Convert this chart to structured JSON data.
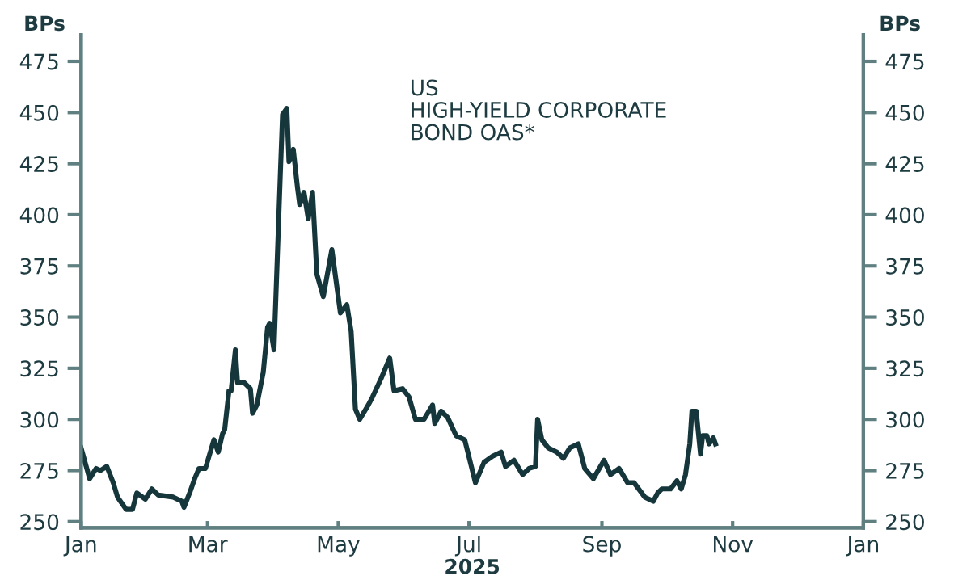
{
  "chart_data": {
    "type": "line",
    "title": "US\nHIGH-YIELD CORPORATE\nBOND OAS*",
    "xlabel": "2025",
    "ylabel": "BPs",
    "y2label": "BPs",
    "x": [
      "2025-01-01",
      "2025-01-05",
      "2025-01-08",
      "2025-01-10",
      "2025-01-13",
      "2025-01-16",
      "2025-01-18",
      "2025-01-22",
      "2025-01-25",
      "2025-01-27",
      "2025-01-31",
      "2025-02-03",
      "2025-02-06",
      "2025-02-13",
      "2025-02-17",
      "2025-02-18",
      "2025-02-21",
      "2025-02-23",
      "2025-02-25",
      "2025-02-28",
      "2025-03-04",
      "2025-03-06",
      "2025-03-08",
      "2025-03-09",
      "2025-03-11",
      "2025-03-12",
      "2025-03-14",
      "2025-03-15",
      "2025-03-18",
      "2025-03-21",
      "2025-03-22",
      "2025-03-24",
      "2025-03-27",
      "2025-03-29",
      "2025-03-30",
      "2025-04-01",
      "2025-04-04",
      "2025-04-05",
      "2025-04-07",
      "2025-04-08",
      "2025-04-10",
      "2025-04-12",
      "2025-04-13",
      "2025-04-15",
      "2025-04-17",
      "2025-04-19",
      "2025-04-21",
      "2025-04-24",
      "2025-04-28",
      "2025-05-02",
      "2025-05-05",
      "2025-05-07",
      "2025-05-09",
      "2025-05-11",
      "2025-05-15",
      "2025-05-17",
      "2025-05-21",
      "2025-05-25",
      "2025-05-27",
      "2025-05-31",
      "2025-06-03",
      "2025-06-06",
      "2025-06-10",
      "2025-06-14",
      "2025-06-15",
      "2025-06-18",
      "2025-06-21",
      "2025-06-25",
      "2025-06-29",
      "2025-07-04",
      "2025-07-08",
      "2025-07-12",
      "2025-07-16",
      "2025-07-18",
      "2025-07-22",
      "2025-07-26",
      "2025-07-29",
      "2025-08-01",
      "2025-08-02",
      "2025-08-04",
      "2025-08-07",
      "2025-08-11",
      "2025-08-14",
      "2025-08-17",
      "2025-08-21",
      "2025-08-24",
      "2025-08-28",
      "2025-09-02",
      "2025-09-05",
      "2025-09-09",
      "2025-09-13",
      "2025-09-16",
      "2025-09-21",
      "2025-09-25",
      "2025-09-27",
      "2025-09-29",
      "2025-10-03",
      "2025-10-06",
      "2025-10-08",
      "2025-10-10",
      "2025-10-12",
      "2025-10-13",
      "2025-10-15",
      "2025-10-17",
      "2025-10-18",
      "2025-10-20",
      "2025-10-21",
      "2025-10-23",
      "2025-10-24"
    ],
    "series": [
      {
        "color": "#15363b",
        "values": [
          286,
          271,
          276,
          275,
          277,
          269,
          262,
          256,
          256,
          264,
          261,
          266,
          263,
          262,
          260,
          257,
          265,
          271,
          276,
          276,
          290,
          284,
          293,
          295,
          314,
          314,
          334,
          318,
          318,
          315,
          303,
          307,
          323,
          345,
          347,
          334,
          421,
          449,
          452,
          426,
          432,
          413,
          405,
          411,
          398,
          411,
          371,
          360,
          383,
          352,
          356,
          343,
          305,
          300,
          307,
          311,
          320,
          330,
          314,
          315,
          311,
          300,
          300,
          307,
          298,
          304,
          301,
          292,
          290,
          269,
          279,
          282,
          284,
          277,
          280,
          273,
          276,
          277,
          300,
          290,
          286,
          284,
          281,
          286,
          288,
          276,
          271,
          280,
          273,
          276,
          269,
          269,
          262,
          260,
          264,
          266,
          266,
          270,
          266,
          273,
          288,
          304,
          304,
          283,
          292,
          292,
          288,
          291,
          288
        ]
      }
    ],
    "xlim": [
      "2025-01-01",
      "2026-01-01"
    ],
    "xticks": [
      {
        "value": "2025-01-01",
        "label": "Jan"
      },
      {
        "value": "2025-03-01",
        "label": "Mar"
      },
      {
        "value": "2025-05-01",
        "label": "May"
      },
      {
        "value": "2025-07-01",
        "label": "Jul"
      },
      {
        "value": "2025-09-01",
        "label": "Sep"
      },
      {
        "value": "2025-11-01",
        "label": "Nov"
      },
      {
        "value": "2026-01-01",
        "label": "Jan"
      }
    ],
    "ylim": [
      247,
      488
    ],
    "yticks": [
      250,
      275,
      300,
      325,
      350,
      375,
      400,
      425,
      450,
      475
    ],
    "y2lim": [
      247,
      488
    ],
    "y2ticks": [
      250,
      275,
      300,
      325,
      350,
      375,
      400,
      425,
      450,
      475
    ],
    "line_style": "solid"
  }
}
